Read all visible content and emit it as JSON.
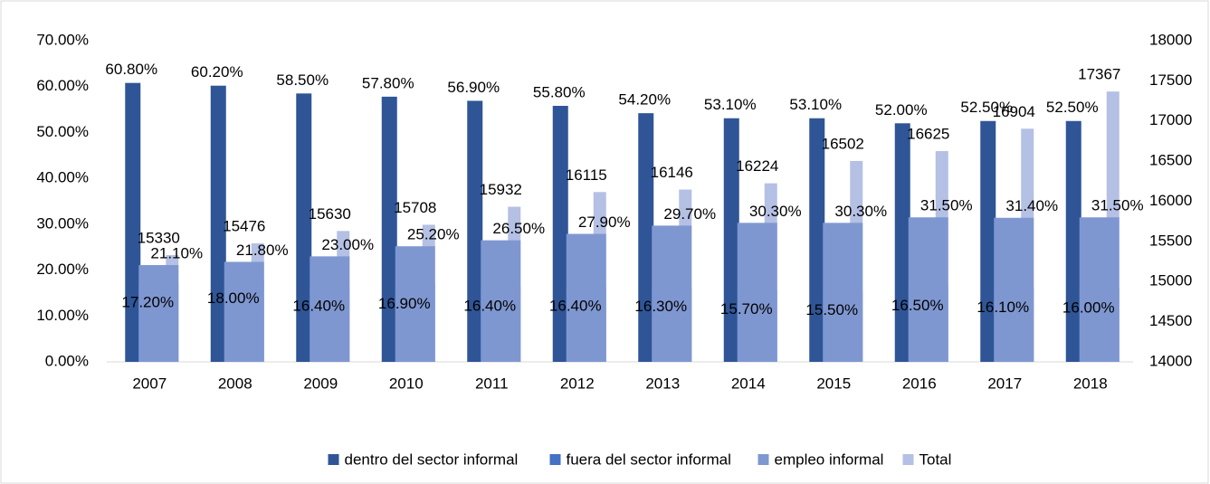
{
  "chart_data": {
    "type": "bar",
    "categories": [
      "2007",
      "2008",
      "2009",
      "2010",
      "2011",
      "2012",
      "2013",
      "2014",
      "2015",
      "2016",
      "2017",
      "2018"
    ],
    "series": [
      {
        "name": "dentro del sector informal",
        "color": "#2f5597",
        "values": [
          60.8,
          60.2,
          58.5,
          57.8,
          56.9,
          55.8,
          54.2,
          53.1,
          53.1,
          52.0,
          52.5,
          52.5
        ],
        "value_labels": [
          "60.80%",
          "60.20%",
          "58.50%",
          "57.80%",
          "56.90%",
          "55.80%",
          "54.20%",
          "53.10%",
          "53.10%",
          "52.00%",
          "52.50%",
          "52.50%"
        ]
      },
      {
        "name": "fuera del sector informal",
        "color": "#4472c4",
        "values": [
          17.2,
          18.0,
          16.4,
          16.9,
          16.4,
          16.4,
          16.3,
          15.7,
          15.5,
          16.5,
          16.1,
          16.0
        ],
        "value_labels": [
          "17.20%",
          "18.00%",
          "16.40%",
          "16.90%",
          "16.40%",
          "16.40%",
          "16.30%",
          "15.70%",
          "15.50%",
          "16.50%",
          "16.10%",
          "16.00%"
        ]
      },
      {
        "name": "empleo informal",
        "color": "#7f97d1",
        "label_color": "#ff0000",
        "values": [
          21.1,
          21.8,
          23.0,
          25.2,
          26.5,
          27.9,
          29.7,
          30.3,
          30.3,
          31.5,
          31.4,
          31.5
        ],
        "value_labels": [
          "21.10%",
          "21.80%",
          "23.00%",
          "25.20%",
          "26.50%",
          "27.90%",
          "29.70%",
          "30.30%",
          "30.30%",
          "31.50%",
          "31.40%",
          "31.50%"
        ]
      },
      {
        "name": "Total",
        "color": "#b4c0e4",
        "axis": "y2",
        "values": [
          15330,
          15476,
          15630,
          15708,
          15932,
          16115,
          16146,
          16224,
          16502,
          16625,
          16904,
          17367
        ]
      }
    ],
    "ylim": [
      0,
      70
    ],
    "yticks": [
      {
        "value": 0,
        "label": "0.00%"
      },
      {
        "value": 10,
        "label": "10.00%"
      },
      {
        "value": 20,
        "label": "20.00%"
      },
      {
        "value": 30,
        "label": "30.00%"
      },
      {
        "value": 40,
        "label": "40.00%"
      },
      {
        "value": 50,
        "label": "50.00%"
      },
      {
        "value": 60,
        "label": "60.00%"
      },
      {
        "value": 70,
        "label": "70.00%"
      }
    ],
    "y2lim": [
      14000,
      18000
    ],
    "y2ticks": [
      14000,
      14500,
      15000,
      15500,
      16000,
      16500,
      17000,
      17500,
      18000
    ],
    "legend": "bottom",
    "grid": false
  }
}
